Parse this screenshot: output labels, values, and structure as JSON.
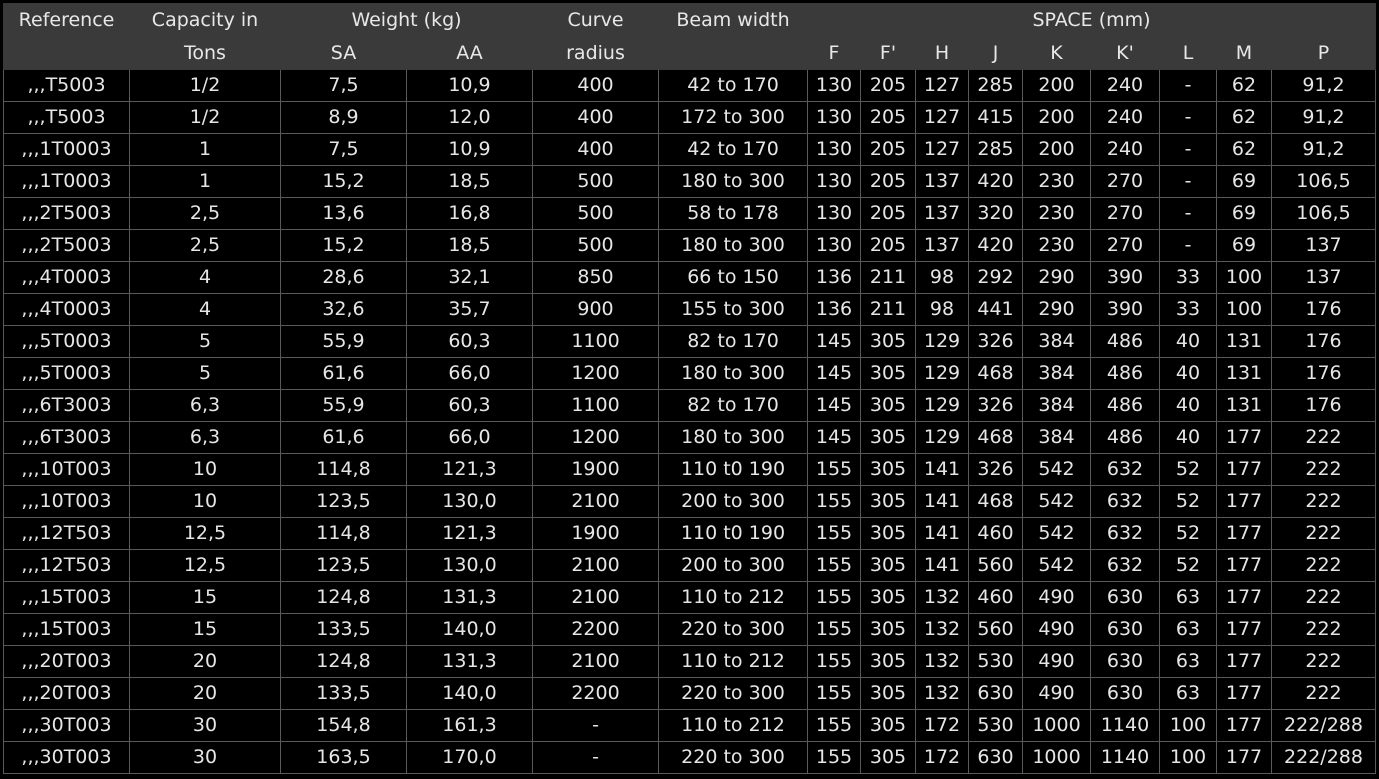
{
  "header": {
    "reference": "Reference",
    "capacity_line1": "Capacity in",
    "capacity_line2": "Tons",
    "weight": "Weight (kg)",
    "sa": "SA",
    "aa": "AA",
    "curve_line1": "Curve",
    "curve_line2": "radius",
    "beam": "Beam width",
    "space": "SPACE (mm)",
    "f": "F",
    "f_prime": "F'",
    "h": "H",
    "j": "J",
    "k": "K",
    "k_prime": "K'",
    "l": "L",
    "m": "M",
    "p": "P"
  },
  "rows": [
    [
      ",,,T5003",
      "1/2",
      "7,5",
      "10,9",
      "400",
      "42 to 170",
      "130",
      "205",
      "127",
      "285",
      "200",
      "240",
      "-",
      "62",
      "91,2"
    ],
    [
      ",,,T5003",
      "1/2",
      "8,9",
      "12,0",
      "400",
      "172 to 300",
      "130",
      "205",
      "127",
      "415",
      "200",
      "240",
      "-",
      "62",
      "91,2"
    ],
    [
      ",,,1T0003",
      "1",
      "7,5",
      "10,9",
      "400",
      "42 to 170",
      "130",
      "205",
      "127",
      "285",
      "200",
      "240",
      "-",
      "62",
      "91,2"
    ],
    [
      ",,,1T0003",
      "1",
      "15,2",
      "18,5",
      "500",
      "180 to 300",
      "130",
      "205",
      "137",
      "420",
      "230",
      "270",
      "-",
      "69",
      "106,5"
    ],
    [
      ",,,2T5003",
      "2,5",
      "13,6",
      "16,8",
      "500",
      "58 to 178",
      "130",
      "205",
      "137",
      "320",
      "230",
      "270",
      "-",
      "69",
      "106,5"
    ],
    [
      ",,,2T5003",
      "2,5",
      "15,2",
      "18,5",
      "500",
      "180 to 300",
      "130",
      "205",
      "137",
      "420",
      "230",
      "270",
      "-",
      "69",
      "137"
    ],
    [
      ",,,4T0003",
      "4",
      "28,6",
      "32,1",
      "850",
      "66 to 150",
      "136",
      "211",
      "98",
      "292",
      "290",
      "390",
      "33",
      "100",
      "137"
    ],
    [
      ",,,4T0003",
      "4",
      "32,6",
      "35,7",
      "900",
      "155 to 300",
      "136",
      "211",
      "98",
      "441",
      "290",
      "390",
      "33",
      "100",
      "176"
    ],
    [
      ",,,5T0003",
      "5",
      "55,9",
      "60,3",
      "1100",
      "82 to 170",
      "145",
      "305",
      "129",
      "326",
      "384",
      "486",
      "40",
      "131",
      "176"
    ],
    [
      ",,,5T0003",
      "5",
      "61,6",
      "66,0",
      "1200",
      "180 to 300",
      "145",
      "305",
      "129",
      "468",
      "384",
      "486",
      "40",
      "131",
      "176"
    ],
    [
      ",,,6T3003",
      "6,3",
      "55,9",
      "60,3",
      "1100",
      "82 to 170",
      "145",
      "305",
      "129",
      "326",
      "384",
      "486",
      "40",
      "131",
      "176"
    ],
    [
      ",,,6T3003",
      "6,3",
      "61,6",
      "66,0",
      "1200",
      "180 to 300",
      "145",
      "305",
      "129",
      "468",
      "384",
      "486",
      "40",
      "177",
      "222"
    ],
    [
      ",,,10T003",
      "10",
      "114,8",
      "121,3",
      "1900",
      "110 t0 190",
      "155",
      "305",
      "141",
      "326",
      "542",
      "632",
      "52",
      "177",
      "222"
    ],
    [
      ",,,10T003",
      "10",
      "123,5",
      "130,0",
      "2100",
      "200 to 300",
      "155",
      "305",
      "141",
      "468",
      "542",
      "632",
      "52",
      "177",
      "222"
    ],
    [
      ",,,12T503",
      "12,5",
      "114,8",
      "121,3",
      "1900",
      "110 t0 190",
      "155",
      "305",
      "141",
      "460",
      "542",
      "632",
      "52",
      "177",
      "222"
    ],
    [
      ",,,12T503",
      "12,5",
      "123,5",
      "130,0",
      "2100",
      "200 to 300",
      "155",
      "305",
      "141",
      "560",
      "542",
      "632",
      "52",
      "177",
      "222"
    ],
    [
      ",,,15T003",
      "15",
      "124,8",
      "131,3",
      "2100",
      "110 to 212",
      "155",
      "305",
      "132",
      "460",
      "490",
      "630",
      "63",
      "177",
      "222"
    ],
    [
      ",,,15T003",
      "15",
      "133,5",
      "140,0",
      "2200",
      "220 to 300",
      "155",
      "305",
      "132",
      "560",
      "490",
      "630",
      "63",
      "177",
      "222"
    ],
    [
      ",,,20T003",
      "20",
      "124,8",
      "131,3",
      "2100",
      "110 to 212",
      "155",
      "305",
      "132",
      "530",
      "490",
      "630",
      "63",
      "177",
      "222"
    ],
    [
      ",,,20T003",
      "20",
      "133,5",
      "140,0",
      "2200",
      "220 to 300",
      "155",
      "305",
      "132",
      "630",
      "490",
      "630",
      "63",
      "177",
      "222"
    ],
    [
      ",,,30T003",
      "30",
      "154,8",
      "161,3",
      "-",
      "110 to 212",
      "155",
      "305",
      "172",
      "530",
      "1000",
      "1140",
      "100",
      "177",
      "222/288"
    ],
    [
      ",,,30T003",
      "30",
      "163,5",
      "170,0",
      "-",
      "220 to 300",
      "155",
      "305",
      "172",
      "630",
      "1000",
      "1140",
      "100",
      "177",
      "222/288"
    ]
  ]
}
